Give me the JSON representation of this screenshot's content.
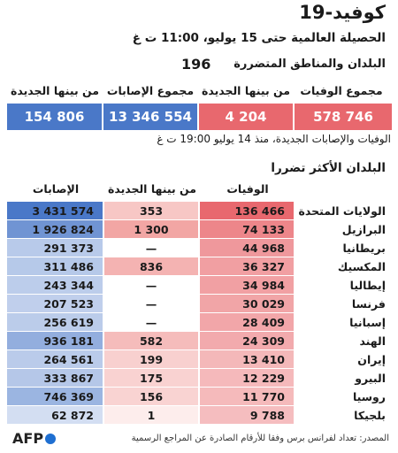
{
  "title": "كوفيد-19",
  "subtitle": "الحصيلة العالمية حتى 15 يوليو، 11:00 ت غ",
  "countries_label": "البلدان والمناطق المتضررة",
  "countries_count": "196",
  "summary": {
    "deaths_total_label": "مجموع الوفيات",
    "deaths_total": "578 746",
    "deaths_new_label": "من بينها الجديدة",
    "deaths_new": "4 204",
    "cases_total_label": "مجموع الإصابات",
    "cases_total": "13 346 554",
    "cases_new_label": "من بينها الجديدة",
    "cases_new": "154 806"
  },
  "note": "الوفيات والإصابات الجديدة، منذ 14 يوليو 19:00 ت غ",
  "table_title": "البلدان الأكثر تضررا",
  "columns": {
    "deaths": "الوفيات",
    "new": "من بينها الجديدة",
    "cases": "الإصابات"
  },
  "colors": {
    "deaths_dark": "#e8686e",
    "deaths_light": "#fbe3e2",
    "cases_dark": "#4a78c8",
    "cases_light": "#eef2fa",
    "new_accent": "#f2a6a4"
  },
  "chart_data": {
    "type": "table",
    "title": "البلدان الأكثر تضررا",
    "rows": [
      {
        "country": "الولايات المتحدة",
        "deaths": "136 466",
        "new": "353",
        "cases": "3 431 574"
      },
      {
        "country": "البرازيل",
        "deaths": "74 133",
        "new": "1 300",
        "cases": "1 926 824"
      },
      {
        "country": "بريطانيا",
        "deaths": "44 968",
        "new": "—",
        "cases": "291 373"
      },
      {
        "country": "المكسيك",
        "deaths": "36 327",
        "new": "836",
        "cases": "311 486"
      },
      {
        "country": "إيطاليا",
        "deaths": "34 984",
        "new": "—",
        "cases": "243 344"
      },
      {
        "country": "فرنسا",
        "deaths": "30 029",
        "new": "—",
        "cases": "207 523"
      },
      {
        "country": "إسبانيا",
        "deaths": "28 409",
        "new": "—",
        "cases": "256 619"
      },
      {
        "country": "الهند",
        "deaths": "24 309",
        "new": "582",
        "cases": "936 181"
      },
      {
        "country": "إيران",
        "deaths": "13 410",
        "new": "199",
        "cases": "264 561"
      },
      {
        "country": "البيرو",
        "deaths": "12 229",
        "new": "175",
        "cases": "333 867"
      },
      {
        "country": "روسيا",
        "deaths": "11 770",
        "new": "156",
        "cases": "746 369"
      },
      {
        "country": "بلجيكا",
        "deaths": "9 788",
        "new": "1",
        "cases": "62 872"
      }
    ],
    "deaths_values": [
      136466,
      74133,
      44968,
      36327,
      34984,
      30029,
      28409,
      24309,
      13410,
      12229,
      11770,
      9788
    ],
    "new_values": [
      353,
      1300,
      0,
      836,
      0,
      0,
      0,
      582,
      199,
      175,
      156,
      1
    ],
    "cases_values": [
      3431574,
      1926824,
      291373,
      311486,
      243344,
      207523,
      256619,
      936181,
      264561,
      333867,
      746369,
      62872
    ]
  },
  "source": "المصدر: تعداد لفرانس برس وفقا للأرقام الصادرة عن المراجع الرسمية",
  "logo_text": "AFP"
}
